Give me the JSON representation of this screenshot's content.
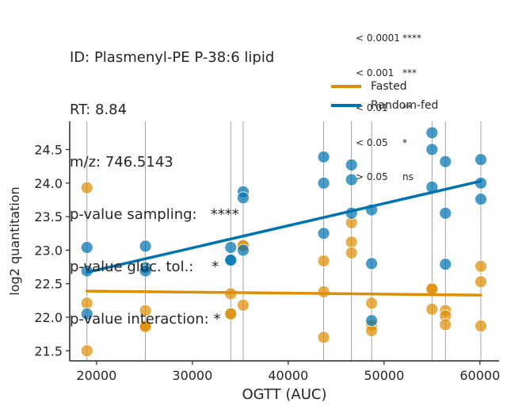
{
  "header": {
    "lines": [
      "ID: Plasmenyl-PE P-38:6 lipid",
      "RT: 8.84",
      "m/z: 746.5143",
      "p-value sampling:   ****",
      "p-value gluc. tol.:    *",
      "p-value interaction: *"
    ]
  },
  "significance_legend": [
    {
      "threshold": "< 0.0001",
      "symbol": "****"
    },
    {
      "threshold": "< 0.001",
      "symbol": "***"
    },
    {
      "threshold": "< 0.01",
      "symbol": "**"
    },
    {
      "threshold": "< 0.05",
      "symbol": "*"
    },
    {
      "threshold": "> 0.05",
      "symbol": "ns"
    }
  ],
  "colors": {
    "fasted": "#de8f05",
    "random_fed": "#0173b2",
    "axis": "#262626",
    "grid": "#8c8c8c"
  },
  "chart_data": {
    "type": "scatter",
    "xlabel": "OGTT (AUC)",
    "ylabel": "log2 quantitation",
    "xlim": [
      17200,
      62000
    ],
    "ylim": [
      21.35,
      24.92
    ],
    "xticks": [
      20000,
      30000,
      40000,
      50000,
      60000
    ],
    "yticks": [
      21.5,
      22.0,
      22.5,
      23.0,
      23.5,
      24.0,
      24.5
    ],
    "vlines": [
      19000,
      25100,
      34000,
      35300,
      43700,
      46600,
      48700,
      55000,
      56400,
      60100
    ],
    "series": [
      {
        "name": "Fasted",
        "color": "#de8f05",
        "points": [
          [
            19000,
            23.93
          ],
          [
            19000,
            22.21
          ],
          [
            19000,
            21.5
          ],
          [
            25100,
            22.1
          ],
          [
            25100,
            21.88
          ],
          [
            25100,
            21.86
          ],
          [
            34000,
            22.35
          ],
          [
            34000,
            22.05
          ],
          [
            34000,
            22.05
          ],
          [
            35300,
            23.06
          ],
          [
            35300,
            23.07
          ],
          [
            35300,
            22.18
          ],
          [
            43700,
            22.84
          ],
          [
            43700,
            22.38
          ],
          [
            43700,
            21.7
          ],
          [
            46600,
            23.41
          ],
          [
            46600,
            23.12
          ],
          [
            46600,
            22.96
          ],
          [
            48700,
            22.21
          ],
          [
            48700,
            21.88
          ],
          [
            48700,
            21.8
          ],
          [
            55000,
            22.43
          ],
          [
            55000,
            22.42
          ],
          [
            55000,
            22.12
          ],
          [
            56400,
            22.1
          ],
          [
            56400,
            22.02
          ],
          [
            56400,
            21.89
          ],
          [
            60100,
            22.76
          ],
          [
            60100,
            22.53
          ],
          [
            60100,
            21.87
          ]
        ],
        "fit": [
          [
            19000,
            22.39
          ],
          [
            60100,
            22.33
          ]
        ]
      },
      {
        "name": "Random-fed",
        "color": "#0173b2",
        "points": [
          [
            19000,
            23.04
          ],
          [
            19000,
            22.69
          ],
          [
            19000,
            22.05
          ],
          [
            25100,
            23.06
          ],
          [
            25100,
            22.74
          ],
          [
            25100,
            22.69
          ],
          [
            34000,
            23.04
          ],
          [
            34000,
            22.86
          ],
          [
            34000,
            22.85
          ],
          [
            35300,
            23.87
          ],
          [
            35300,
            23.78
          ],
          [
            35300,
            23.0
          ],
          [
            43700,
            24.39
          ],
          [
            43700,
            24.0
          ],
          [
            43700,
            23.25
          ],
          [
            46600,
            24.27
          ],
          [
            46600,
            24.05
          ],
          [
            46600,
            23.55
          ],
          [
            48700,
            23.6
          ],
          [
            48700,
            22.8
          ],
          [
            48700,
            21.95
          ],
          [
            55000,
            24.75
          ],
          [
            55000,
            24.5
          ],
          [
            55000,
            23.94
          ],
          [
            56400,
            24.32
          ],
          [
            56400,
            23.55
          ],
          [
            56400,
            22.79
          ],
          [
            60100,
            24.35
          ],
          [
            60100,
            24.0
          ],
          [
            60100,
            23.76
          ]
        ],
        "fit": [
          [
            19000,
            22.67
          ],
          [
            60100,
            24.03
          ]
        ]
      }
    ]
  }
}
